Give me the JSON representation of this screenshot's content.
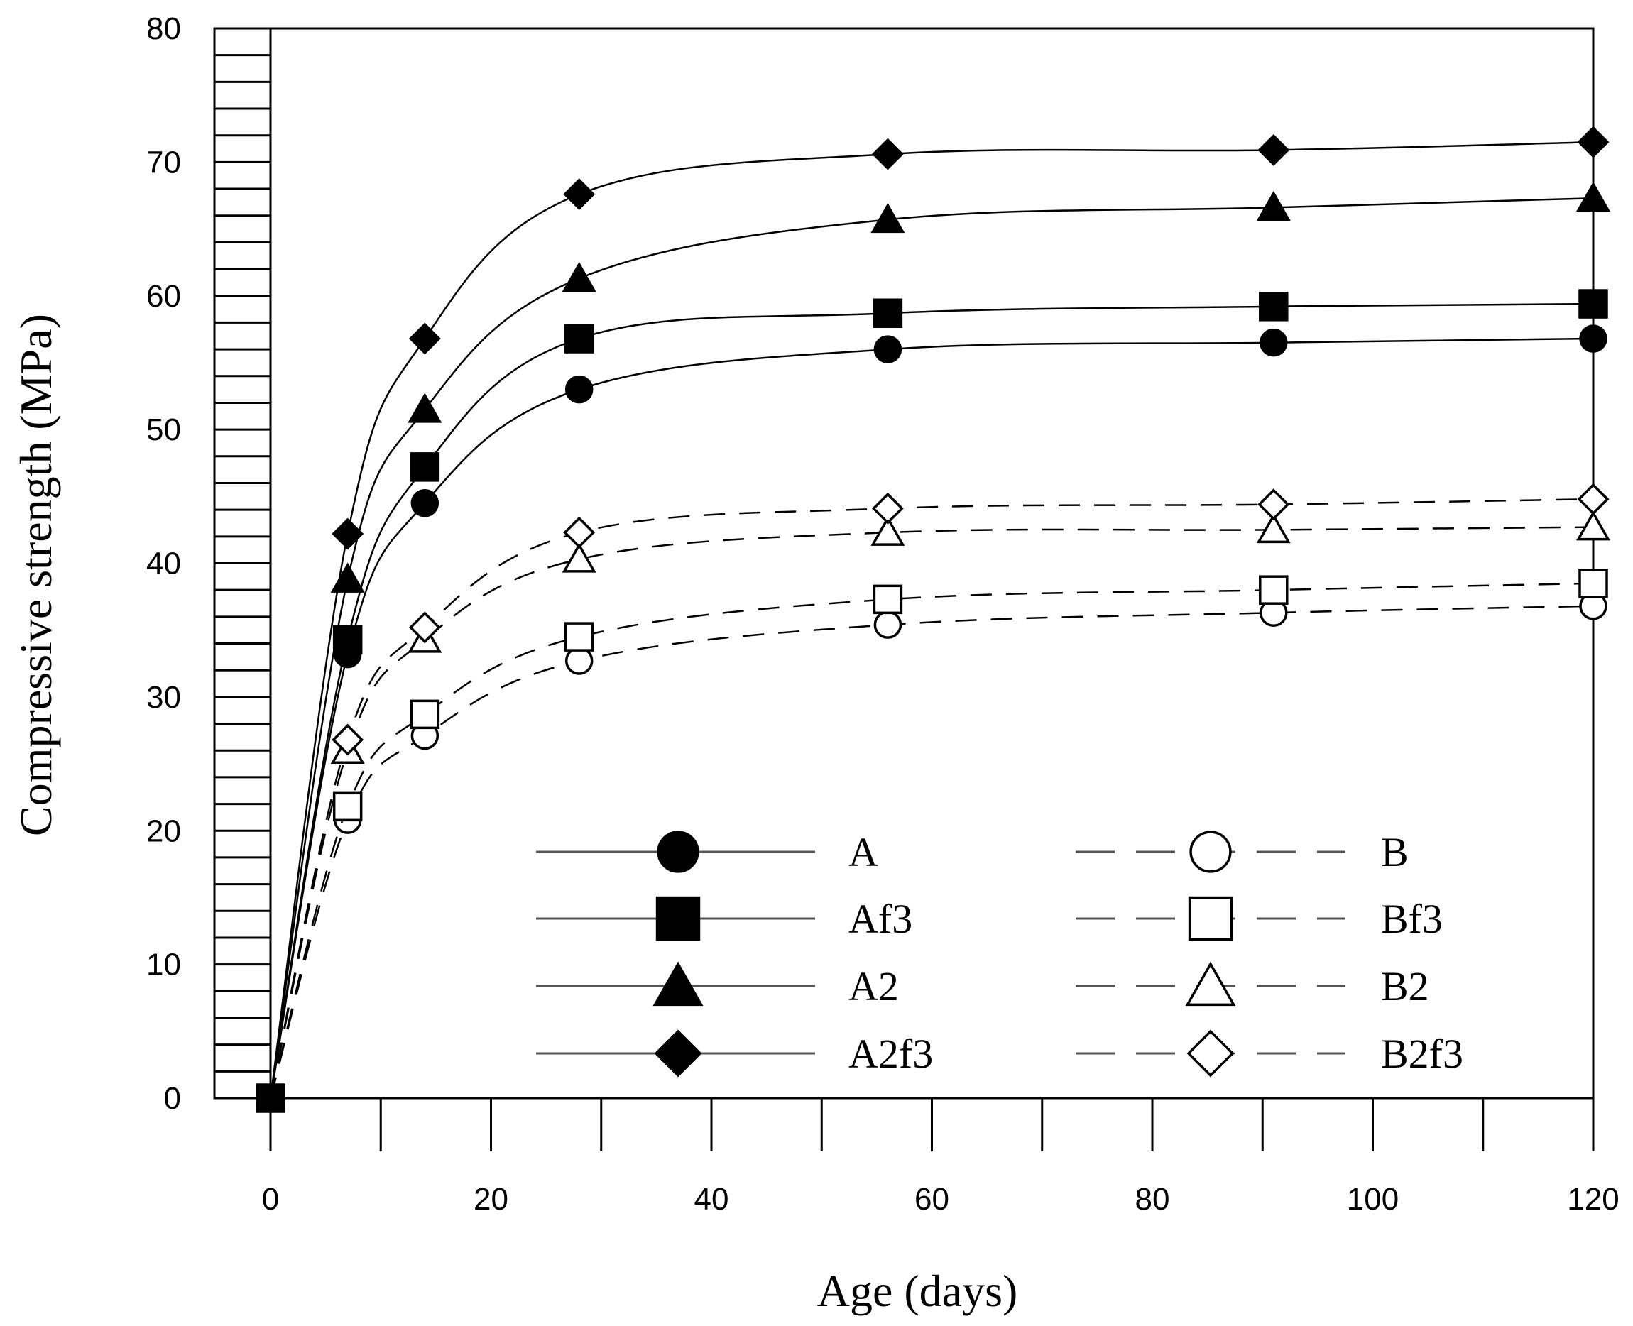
{
  "chart_data": {
    "type": "line",
    "title": "",
    "xlabel": "Age (days)",
    "ylabel": "Compressive strength (MPa)",
    "xlim": [
      0,
      120
    ],
    "ylim": [
      0,
      80
    ],
    "xticks": [
      0,
      20,
      40,
      60,
      80,
      100,
      120
    ],
    "yticks": [
      0,
      10,
      20,
      30,
      40,
      50,
      60,
      70,
      80
    ],
    "grid": false,
    "legend_position": "bottom-right",
    "x": [
      0,
      7,
      14,
      28,
      56,
      91,
      120
    ],
    "series": [
      {
        "name": "A",
        "style": "solid",
        "marker": "circle-filled",
        "values": [
          0,
          33.2,
          44.5,
          53.0,
          56.0,
          56.5,
          56.8
        ]
      },
      {
        "name": "Af3",
        "style": "solid",
        "marker": "square-filled",
        "values": [
          0,
          34.3,
          47.2,
          56.8,
          58.7,
          59.2,
          59.4
        ]
      },
      {
        "name": "A2",
        "style": "solid",
        "marker": "triangle-filled",
        "values": [
          0,
          38.8,
          51.5,
          61.3,
          65.7,
          66.6,
          67.3
        ]
      },
      {
        "name": "A2f3",
        "style": "solid",
        "marker": "diamond-filled",
        "values": [
          0,
          42.2,
          56.8,
          67.6,
          70.6,
          70.9,
          71.5
        ]
      },
      {
        "name": "B",
        "style": "dashed",
        "marker": "circle-open",
        "values": [
          0,
          20.8,
          27.1,
          32.7,
          35.4,
          36.3,
          36.8
        ]
      },
      {
        "name": "Bf3",
        "style": "dashed",
        "marker": "square-open",
        "values": [
          0,
          21.8,
          28.7,
          34.5,
          37.3,
          38.0,
          38.5
        ]
      },
      {
        "name": "B2",
        "style": "dashed",
        "marker": "triangle-open",
        "values": [
          0,
          26.0,
          34.3,
          40.3,
          42.3,
          42.5,
          42.7
        ]
      },
      {
        "name": "B2f3",
        "style": "dashed",
        "marker": "diamond-open",
        "values": [
          0,
          26.8,
          35.2,
          42.3,
          44.1,
          44.4,
          44.8
        ]
      }
    ]
  }
}
